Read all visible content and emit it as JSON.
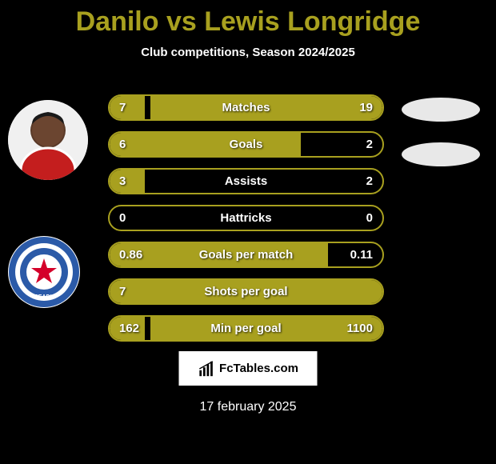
{
  "title": "Danilo vs Lewis Longridge",
  "subtitle": "Club competitions, Season 2024/2025",
  "date": "17 february 2025",
  "logo_text": "FcTables.com",
  "accent_color": "#a8a01f",
  "background_color": "#000000",
  "bar_border_color": "#a8a01f",
  "text_color": "#ffffff",
  "stats": [
    {
      "label": "Matches",
      "left_val": "7",
      "right_val": "19",
      "left_pct": 13,
      "right_pct": 85
    },
    {
      "label": "Goals",
      "left_val": "6",
      "right_val": "2",
      "left_pct": 70,
      "right_pct": 0
    },
    {
      "label": "Assists",
      "left_val": "3",
      "right_val": "2",
      "left_pct": 13,
      "right_pct": 0
    },
    {
      "label": "Hattricks",
      "left_val": "0",
      "right_val": "0",
      "left_pct": 0,
      "right_pct": 0
    },
    {
      "label": "Goals per match",
      "left_val": "0.86",
      "right_val": "0.11",
      "left_pct": 80,
      "right_pct": 0
    },
    {
      "label": "Shots per goal",
      "left_val": "7",
      "right_val": "",
      "left_pct": 100,
      "right_pct": 0
    },
    {
      "label": "Min per goal",
      "left_val": "162",
      "right_val": "1100",
      "left_pct": 13,
      "right_pct": 85
    }
  ],
  "badge_colors": {
    "outer": "#2b5aa8",
    "inner": "#fff",
    "star": "#d4002a"
  }
}
